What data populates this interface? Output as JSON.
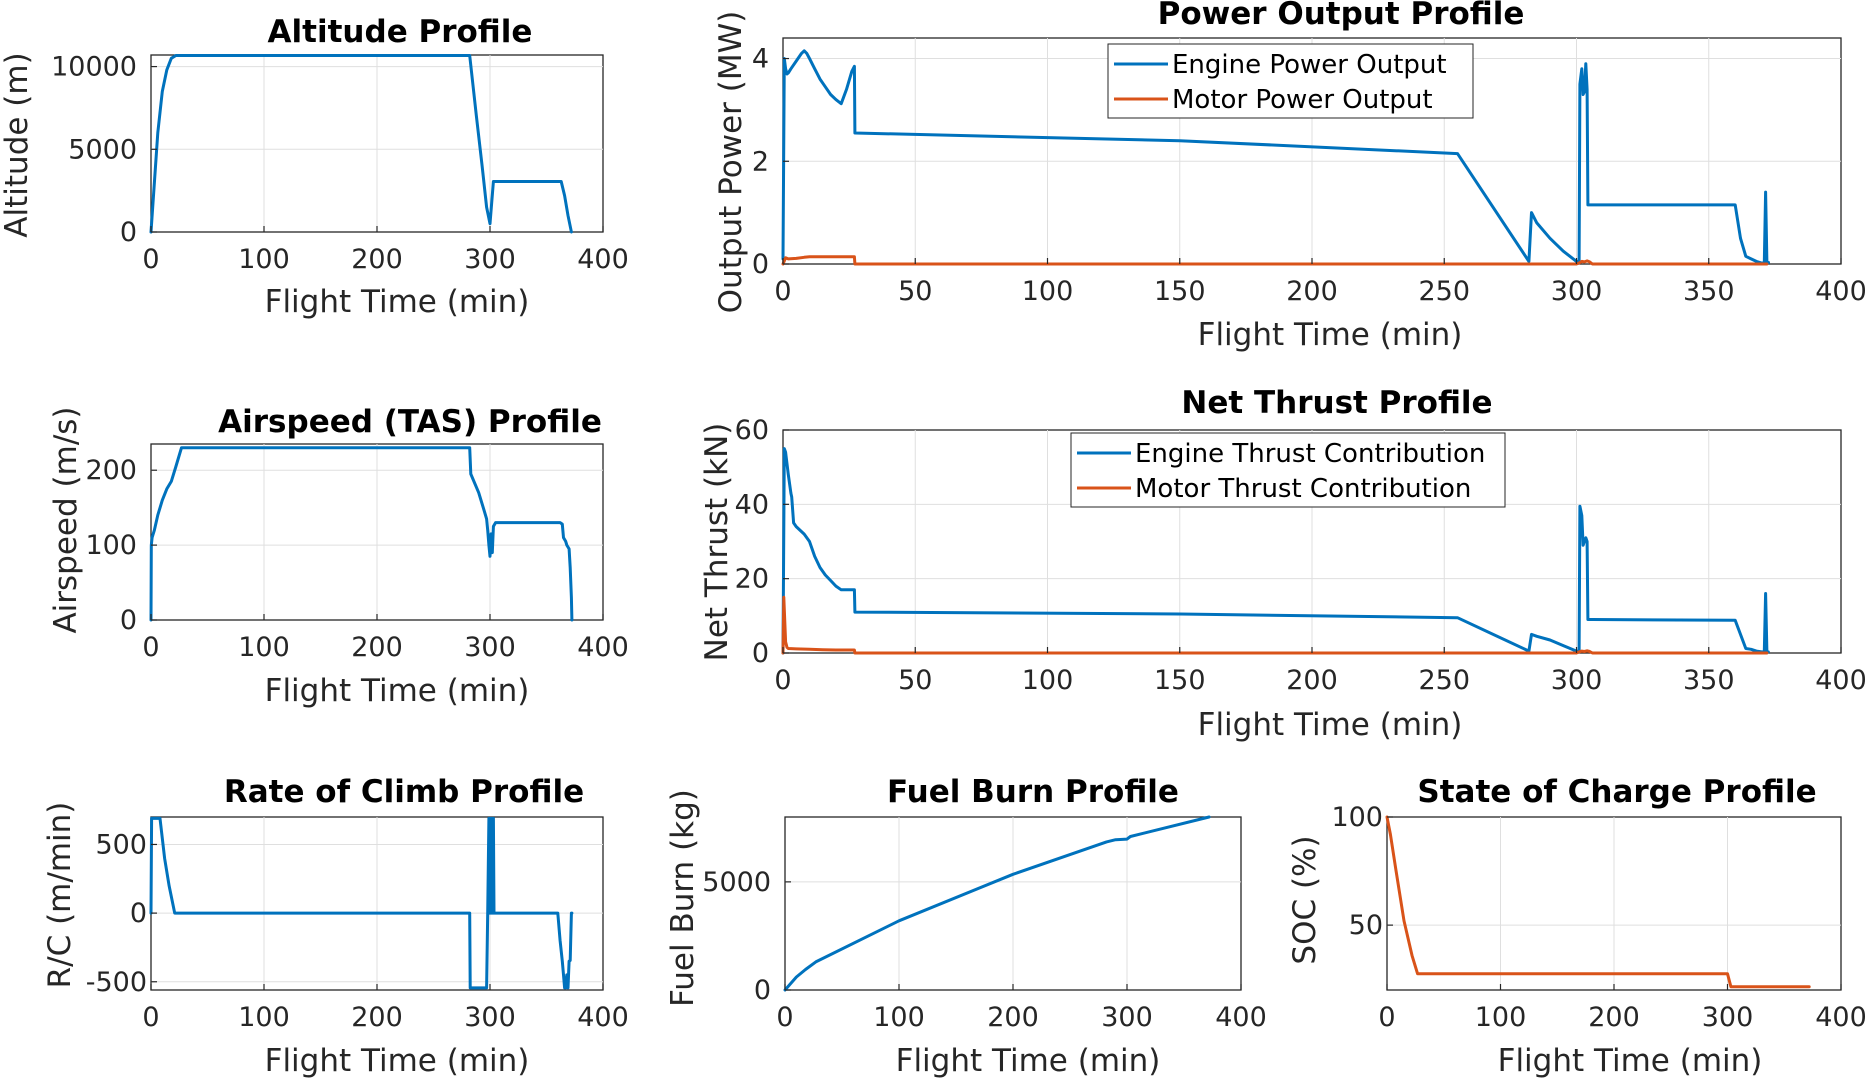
{
  "colors": {
    "engine": "#0072BD",
    "motor": "#D95319"
  },
  "chart_data": [
    {
      "id": "altitude",
      "type": "line",
      "title": "Altitude Profile",
      "xlabel": "Flight Time (min)",
      "ylabel": "Altitude (m)",
      "xlim": [
        0,
        400
      ],
      "ylim": [
        0,
        10700
      ],
      "xticks": [
        0,
        100,
        200,
        300,
        400
      ],
      "yticks": [
        0,
        5000,
        10000
      ],
      "grid": true,
      "series": [
        {
          "color_key": "engine",
          "x": [
            0,
            3,
            6,
            10,
            14,
            18,
            22,
            282,
            288,
            293,
            297,
            300,
            303,
            360,
            363,
            366,
            369,
            372
          ],
          "y": [
            0,
            3000,
            6000,
            8500,
            9800,
            10500,
            10668,
            10668,
            7000,
            4000,
            1500,
            500,
            3050,
            3050,
            3050,
            2200,
            1000,
            0
          ]
        }
      ]
    },
    {
      "id": "power",
      "type": "line",
      "title": "Power Output Profile",
      "xlabel": "Flight Time (min)",
      "ylabel": "Output Power (MW)",
      "xlim": [
        0,
        400
      ],
      "ylim": [
        0,
        4.4
      ],
      "xticks": [
        0,
        50,
        100,
        150,
        200,
        250,
        300,
        350,
        400
      ],
      "yticks": [
        0,
        2,
        4
      ],
      "grid": true,
      "legend_position": "top-center",
      "legend": [
        "Engine Power Output",
        "Motor Power Output"
      ],
      "series": [
        {
          "name": "Engine Power Output",
          "color_key": "engine",
          "x": [
            0,
            0.5,
            1,
            1.5,
            2,
            3,
            5,
            7,
            8,
            9,
            10,
            12,
            14,
            16,
            18,
            20,
            22,
            24,
            26,
            27,
            27.2,
            150,
            255,
            282,
            283,
            285,
            290,
            295,
            300,
            301,
            301.3,
            302,
            302.5,
            303,
            303.5,
            304,
            304.3,
            305,
            305.5,
            306,
            360,
            362,
            364,
            366,
            368,
            370,
            371,
            371.5,
            372,
            372.3,
            372.6
          ],
          "y": [
            0.1,
            4.0,
            3.8,
            3.7,
            3.72,
            3.8,
            3.95,
            4.1,
            4.15,
            4.1,
            4.0,
            3.8,
            3.6,
            3.45,
            3.3,
            3.2,
            3.12,
            3.4,
            3.75,
            3.85,
            2.55,
            2.4,
            2.15,
            0.05,
            1.0,
            0.8,
            0.5,
            0.25,
            0.05,
            0.05,
            3.5,
            3.8,
            3.3,
            3.35,
            3.9,
            3.4,
            1.15,
            1.15,
            1.15,
            1.15,
            1.15,
            0.5,
            0.15,
            0.1,
            0.05,
            0.02,
            0.02,
            1.4,
            0.03,
            0.03,
            0.03
          ]
        },
        {
          "name": "Motor Power Output",
          "color_key": "motor",
          "x": [
            0,
            1,
            2,
            5,
            8,
            10,
            14,
            18,
            22,
            26,
            27,
            27.2,
            100,
            200,
            300,
            301,
            302,
            303,
            304,
            305,
            306,
            307,
            372
          ],
          "y": [
            0.0,
            0.12,
            0.1,
            0.11,
            0.13,
            0.14,
            0.14,
            0.14,
            0.14,
            0.14,
            0.14,
            0.0,
            0.0,
            0.0,
            0.0,
            0.02,
            0.05,
            0.04,
            0.06,
            0.04,
            0.0,
            0.0,
            0.0
          ]
        }
      ]
    },
    {
      "id": "airspeed",
      "type": "line",
      "title": "Airspeed (TAS) Profile",
      "xlabel": "Flight Time (min)",
      "ylabel": "Airspeed (m/s)",
      "xlim": [
        0,
        400
      ],
      "ylim": [
        0,
        235
      ],
      "xticks": [
        0,
        100,
        200,
        300,
        400
      ],
      "yticks": [
        0,
        100,
        200
      ],
      "grid": true,
      "series": [
        {
          "color_key": "engine",
          "x": [
            0,
            0.3,
            1,
            3,
            6,
            10,
            14,
            18,
            22,
            27,
            282,
            283,
            290,
            295,
            297,
            298,
            299,
            300,
            301,
            302,
            303,
            305,
            362,
            364,
            365,
            367,
            368,
            370,
            371,
            372,
            372.5
          ],
          "y": [
            0,
            100,
            110,
            120,
            140,
            160,
            175,
            185,
            205,
            230,
            230,
            195,
            170,
            145,
            135,
            120,
            100,
            85,
            115,
            90,
            125,
            130,
            130,
            128,
            110,
            105,
            100,
            95,
            70,
            30,
            0
          ]
        }
      ]
    },
    {
      "id": "thrust",
      "type": "line",
      "title": "Net Thrust Profile",
      "xlabel": "Flight Time (min)",
      "ylabel": "Net Thrust (kN)",
      "xlim": [
        0,
        400
      ],
      "ylim": [
        0,
        60
      ],
      "xticks": [
        0,
        50,
        100,
        150,
        200,
        250,
        300,
        350,
        400
      ],
      "yticks": [
        0,
        20,
        40,
        60
      ],
      "grid": true,
      "legend_position": "top-center",
      "legend": [
        "Engine Thrust Contribution",
        "Motor Thrust Contribution"
      ],
      "series": [
        {
          "name": "Engine Thrust Contribution",
          "color_key": "engine",
          "x": [
            0,
            0.5,
            1,
            2,
            3,
            3.3,
            4,
            5,
            8,
            10,
            12,
            14,
            16,
            18,
            20,
            22,
            24,
            26,
            27,
            27.2,
            150,
            255,
            282,
            283,
            285,
            290,
            295,
            300,
            301,
            301.3,
            302,
            302.5,
            303,
            303.5,
            304,
            304.3,
            305,
            306,
            360,
            362,
            364,
            366,
            368,
            370,
            371,
            371.5,
            372,
            372.5
          ],
          "y": [
            0,
            55,
            54,
            48,
            43,
            42,
            35,
            34,
            32,
            30,
            26,
            23,
            21,
            19.5,
            18,
            17,
            17,
            17,
            17,
            11,
            10.5,
            9.5,
            0.5,
            5,
            4.5,
            3.5,
            2,
            0.5,
            0.5,
            39.5,
            37,
            29,
            30,
            31,
            30,
            9,
            9,
            9,
            8.8,
            5,
            1.2,
            1,
            0.5,
            0.3,
            0.3,
            16,
            0.3,
            0.3
          ]
        },
        {
          "name": "Motor Thrust Contribution",
          "color_key": "motor",
          "x": [
            0,
            0.3,
            1,
            1.5,
            2,
            5,
            10,
            15,
            20,
            27,
            27.2,
            100,
            200,
            300,
            301,
            302,
            303,
            304,
            305,
            306,
            372
          ],
          "y": [
            0,
            15,
            3,
            1.5,
            1.2,
            1.1,
            1.0,
            0.9,
            0.8,
            0.8,
            0,
            0,
            0,
            0,
            0.3,
            0.5,
            0.4,
            0.6,
            0.4,
            0,
            0
          ]
        }
      ]
    },
    {
      "id": "roc",
      "type": "line",
      "title": "Rate of Climb Profile",
      "xlabel": "Flight Time (min)",
      "ylabel": "R/C (m/min)",
      "xlim": [
        0,
        400
      ],
      "ylim": [
        -560,
        700
      ],
      "xticks": [
        0,
        100,
        200,
        300,
        400
      ],
      "yticks": [
        -500,
        0,
        500
      ],
      "grid": true,
      "series": [
        {
          "color_key": "engine",
          "x": [
            0,
            0.5,
            8,
            12,
            16,
            21,
            282,
            282.5,
            297,
            298,
            299,
            299.5,
            300,
            300.5,
            301,
            301.5,
            302,
            302.5,
            303,
            303.5,
            360,
            362,
            364,
            365,
            366,
            367,
            368,
            369,
            370,
            371,
            372,
            372.5
          ],
          "y": [
            0,
            690,
            690,
            400,
            200,
            0,
            0,
            -545,
            -545,
            0,
            690,
            0,
            690,
            0,
            690,
            0,
            690,
            0,
            690,
            0,
            0,
            -200,
            -350,
            -450,
            -545,
            -545,
            -450,
            -545,
            -350,
            -345,
            0,
            0
          ]
        }
      ]
    },
    {
      "id": "fuel",
      "type": "line",
      "title": "Fuel Burn Profile",
      "xlabel": "Flight Time (min)",
      "ylabel": "Fuel Burn (kg)",
      "xlim": [
        0,
        400
      ],
      "ylim": [
        0,
        8000
      ],
      "xticks": [
        0,
        100,
        200,
        300,
        400
      ],
      "yticks": [
        0,
        5000
      ],
      "grid": true,
      "series": [
        {
          "color_key": "engine",
          "x": [
            0,
            5,
            10,
            18,
            27,
            100,
            200,
            282,
            290,
            300,
            303,
            372
          ],
          "y": [
            0,
            300,
            600,
            950,
            1300,
            3200,
            5350,
            6850,
            6950,
            6980,
            7100,
            8000
          ]
        }
      ]
    },
    {
      "id": "soc",
      "type": "line",
      "title": "State of Charge Profile",
      "xlabel": "Flight Time (min)",
      "ylabel": "SOC (%)",
      "xlim": [
        0,
        400
      ],
      "ylim": [
        20,
        100
      ],
      "xticks": [
        0,
        100,
        200,
        300,
        400
      ],
      "yticks": [
        50,
        100
      ],
      "grid": true,
      "series": [
        {
          "color_key": "motor",
          "x": [
            0,
            3,
            8,
            15,
            22,
            27,
            295,
            300,
            303,
            372
          ],
          "y": [
            100,
            92,
            75,
            52,
            36,
            27.5,
            27.5,
            27.5,
            21.5,
            21.5
          ]
        }
      ]
    }
  ]
}
